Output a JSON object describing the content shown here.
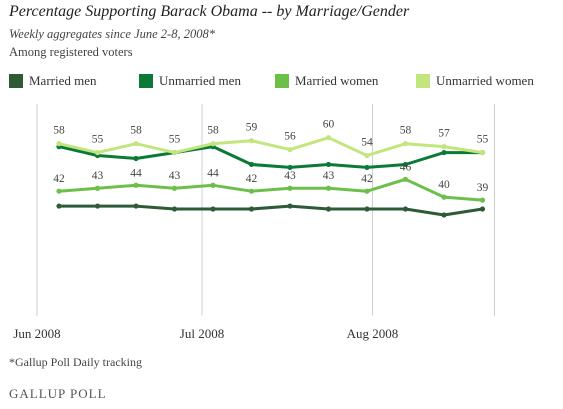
{
  "title": "Percentage Supporting Barack Obama -- by Marriage/Gender",
  "subtitle": "Weekly aggregates since June 2-8, 2008*",
  "note": "Among registered voters",
  "footnote": "*Gallup Poll Daily tracking",
  "logo": "GALLUP POLL",
  "chart_data": {
    "type": "line",
    "x": [
      "2008-06-05",
      "2008-06-12",
      "2008-06-19",
      "2008-06-26",
      "2008-07-03",
      "2008-07-10",
      "2008-07-17",
      "2008-07-24",
      "2008-07-31",
      "2008-08-07",
      "2008-08-14",
      "2008-08-21"
    ],
    "x_ticks": [
      {
        "label": "Jun 2008",
        "date": "2008-06-01"
      },
      {
        "label": "Jul 2008",
        "date": "2008-07-01"
      },
      {
        "label": "Aug 2008",
        "date": "2008-08-01"
      }
    ],
    "ylim": [
      0,
      70
    ],
    "grid": {
      "vertical": true,
      "horizontal": false
    },
    "legend_position": "top",
    "series": [
      {
        "name": "Married men",
        "color": "#2e5a35",
        "values": [
          37,
          37,
          37,
          36,
          36,
          36,
          37,
          36,
          36,
          36,
          34,
          36
        ],
        "labels": []
      },
      {
        "name": "Unmarried men",
        "color": "#0b7a36",
        "values": [
          57,
          54,
          53,
          55,
          57,
          51,
          50,
          51,
          50,
          51,
          55,
          55
        ],
        "labels": []
      },
      {
        "name": "Married women",
        "color": "#6cc04a",
        "values": [
          42,
          43,
          44,
          43,
          44,
          42,
          43,
          43,
          42,
          46,
          40,
          39
        ],
        "labels": [
          "42",
          "43",
          "44",
          "43",
          "44",
          "42",
          "43",
          "43",
          "42",
          "46",
          "40",
          "39"
        ]
      },
      {
        "name": "Unmarried women",
        "color": "#c3e57e",
        "values": [
          58,
          55,
          58,
          55,
          58,
          59,
          56,
          60,
          54,
          58,
          57,
          55
        ],
        "labels": [
          "58",
          "55",
          "58",
          "55",
          "58",
          "59",
          "56",
          "60",
          "54",
          "58",
          "57",
          "55"
        ]
      }
    ]
  }
}
